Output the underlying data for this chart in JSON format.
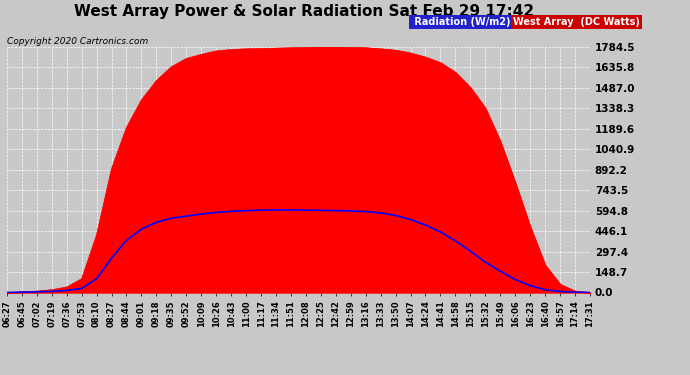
{
  "title": "West Array Power & Solar Radiation Sat Feb 29 17:42",
  "copyright": "Copyright 2020 Cartronics.com",
  "yticks": [
    0.0,
    148.7,
    297.4,
    446.1,
    594.8,
    743.5,
    892.2,
    1040.9,
    1189.6,
    1338.3,
    1487.0,
    1635.8,
    1784.5
  ],
  "ymax": 1784.5,
  "ymin": 0.0,
  "background_color": "#c8c8c8",
  "plot_bg_color": "#c8c8c8",
  "grid_color": "#ffffff",
  "radiation_color": "#ff0000",
  "inverter_color": "#0000ff",
  "title_fontsize": 11,
  "xtick_labels": [
    "06:27",
    "06:45",
    "07:02",
    "07:19",
    "07:36",
    "07:53",
    "08:10",
    "08:27",
    "08:44",
    "09:01",
    "09:18",
    "09:35",
    "09:52",
    "10:09",
    "10:26",
    "10:43",
    "11:00",
    "11:17",
    "11:34",
    "11:51",
    "12:08",
    "12:25",
    "12:42",
    "12:59",
    "13:16",
    "13:33",
    "13:50",
    "14:07",
    "14:24",
    "14:41",
    "14:58",
    "15:15",
    "15:32",
    "15:49",
    "16:06",
    "16:23",
    "16:40",
    "16:57",
    "17:14",
    "17:31"
  ],
  "radiation_data": [
    0,
    5,
    10,
    20,
    40,
    100,
    420,
    900,
    1200,
    1400,
    1540,
    1640,
    1700,
    1730,
    1755,
    1765,
    1770,
    1772,
    1775,
    1778,
    1780,
    1782,
    1782,
    1780,
    1778,
    1770,
    1760,
    1740,
    1710,
    1670,
    1600,
    1490,
    1340,
    1100,
    800,
    480,
    200,
    60,
    10,
    0
  ],
  "inverter_data": [
    0,
    2,
    5,
    8,
    15,
    30,
    100,
    250,
    380,
    460,
    510,
    540,
    555,
    570,
    582,
    590,
    595,
    598,
    600,
    600,
    598,
    597,
    595,
    592,
    588,
    578,
    560,
    530,
    490,
    440,
    375,
    300,
    220,
    155,
    95,
    50,
    20,
    8,
    2,
    0
  ]
}
